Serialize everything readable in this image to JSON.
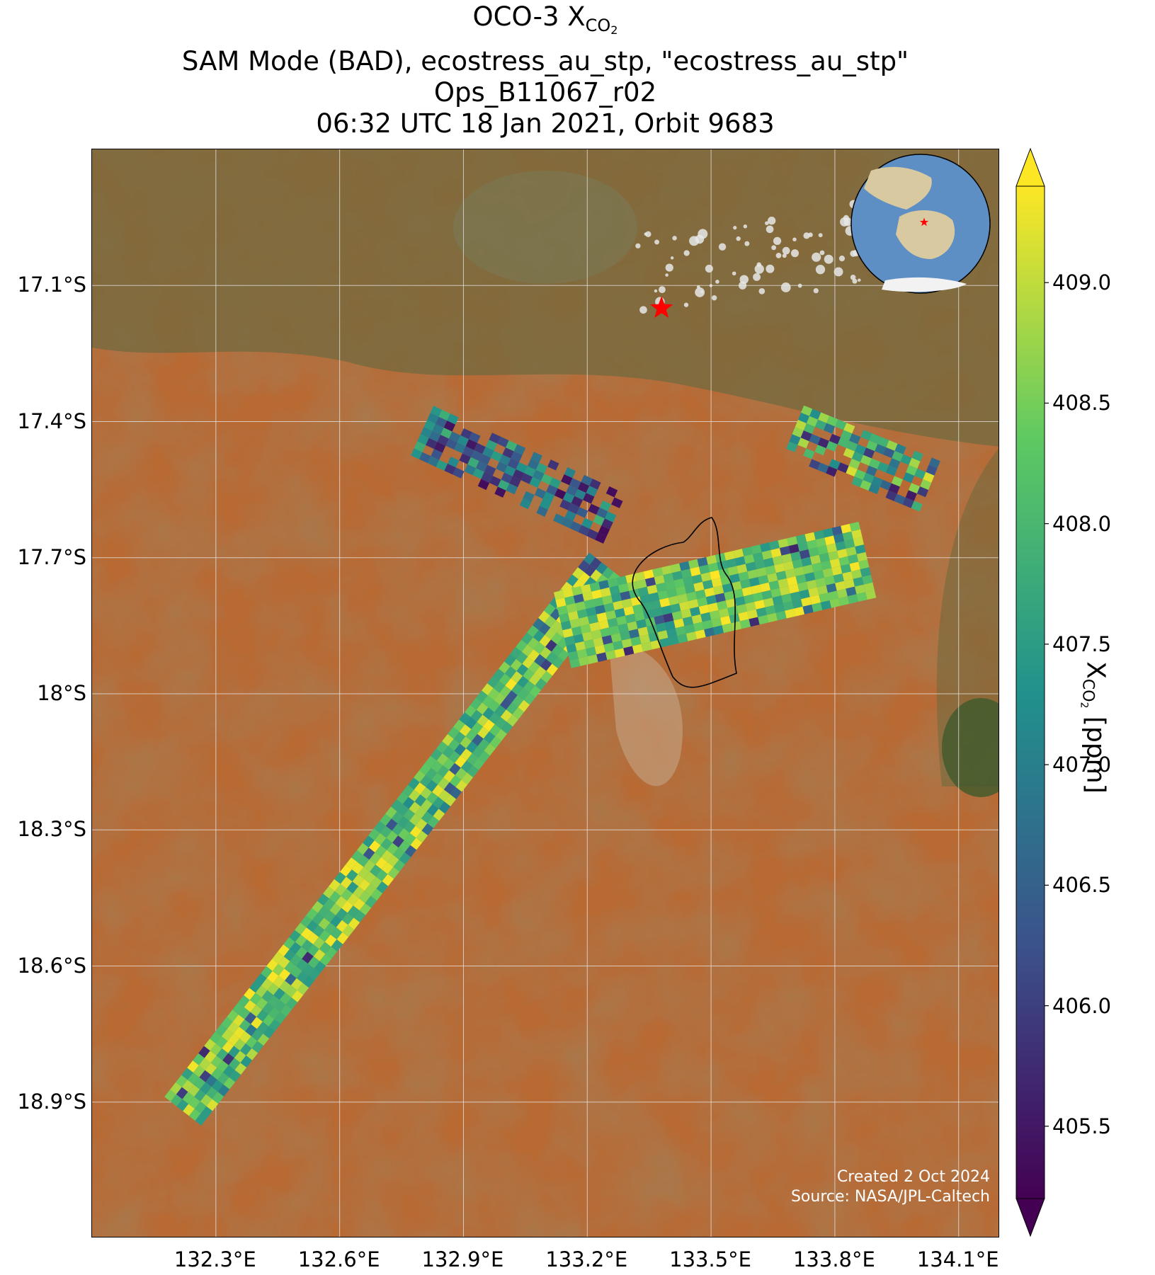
{
  "title": {
    "line1_prefix": "OCO-3 X",
    "line1_sub": "CO",
    "line1_sub2": "2",
    "line2": "SAM Mode (BAD), ecostress_au_stp, \"ecostress_au_stp\"",
    "line3": "Ops_B11067_r02",
    "line4": "06:32 UTC 18 Jan 2021, Orbit 9683"
  },
  "map": {
    "lon_range": [
      132.0,
      134.2
    ],
    "lat_range": [
      -19.2,
      -16.8
    ],
    "gridlines": true,
    "lat_ticks": [
      {
        "value": -17.1,
        "label": "17.1°S"
      },
      {
        "value": -17.4,
        "label": "17.4°S"
      },
      {
        "value": -17.7,
        "label": "17.7°S"
      },
      {
        "value": -18.0,
        "label": "18°S"
      },
      {
        "value": -18.3,
        "label": "18.3°S"
      },
      {
        "value": -18.6,
        "label": "18.6°S"
      },
      {
        "value": -18.9,
        "label": "18.9°S"
      }
    ],
    "lon_ticks": [
      {
        "value": 132.3,
        "label": "132.3°E"
      },
      {
        "value": 132.6,
        "label": "132.6°E"
      },
      {
        "value": 132.9,
        "label": "132.9°E"
      },
      {
        "value": 133.2,
        "label": "133.2°E"
      },
      {
        "value": 133.5,
        "label": "133.5°E"
      },
      {
        "value": 133.8,
        "label": "133.8°E"
      },
      {
        "value": 134.1,
        "label": "134.1°E"
      }
    ],
    "target_marker": {
      "lon": 133.38,
      "lat": -17.15,
      "color": "#ff0000",
      "icon": "star-icon"
    },
    "basemap_colors": {
      "desert": "#b86a33",
      "vegetation": "#6e6a3e",
      "grass": "#7a7a55",
      "clouds": "#e8e8e8"
    },
    "globe_inset": {
      "ocean": "#5d8fc4",
      "land": "#d8c9a0",
      "marker_color": "#ff0000"
    },
    "swaths": [
      {
        "name": "main-strip",
        "from": [
          132.22,
          -18.92
        ],
        "to": [
          133.25,
          -17.72
        ],
        "width_deg": 0.12,
        "pattern": "high"
      },
      {
        "name": "central-block",
        "from": [
          133.14,
          -17.86
        ],
        "to": [
          133.9,
          -17.7
        ],
        "width_deg": 0.2,
        "pattern": "high"
      },
      {
        "name": "north-left",
        "from": [
          132.8,
          -17.42
        ],
        "to": [
          133.28,
          -17.62
        ],
        "width_deg": 0.15,
        "pattern": "low"
      },
      {
        "name": "north-right",
        "from": [
          133.7,
          -17.42
        ],
        "to": [
          134.05,
          -17.55
        ],
        "width_deg": 0.14,
        "pattern": "mixed"
      }
    ],
    "plume_outline_color": "#000000"
  },
  "colorbar": {
    "vmin": 405.2,
    "vmax": 409.4,
    "ticks": [
      {
        "value": 405.5,
        "label": "405.5"
      },
      {
        "value": 406.0,
        "label": "406.0"
      },
      {
        "value": 406.5,
        "label": "406.5"
      },
      {
        "value": 407.0,
        "label": "407.0"
      },
      {
        "value": 407.5,
        "label": "407.5"
      },
      {
        "value": 408.0,
        "label": "408.0"
      },
      {
        "value": 408.5,
        "label": "408.5"
      },
      {
        "value": 409.0,
        "label": "409.0"
      }
    ],
    "label_prefix": "X",
    "label_sub": "CO",
    "label_sub2": "2",
    "label_suffix": " [ppm]",
    "colormap": [
      "#440154",
      "#3b528b",
      "#21918c",
      "#5ec962",
      "#fde725"
    ]
  },
  "credits": {
    "line1": "Created 2 Oct 2024",
    "line2": "Source: NASA/JPL-Caltech"
  }
}
